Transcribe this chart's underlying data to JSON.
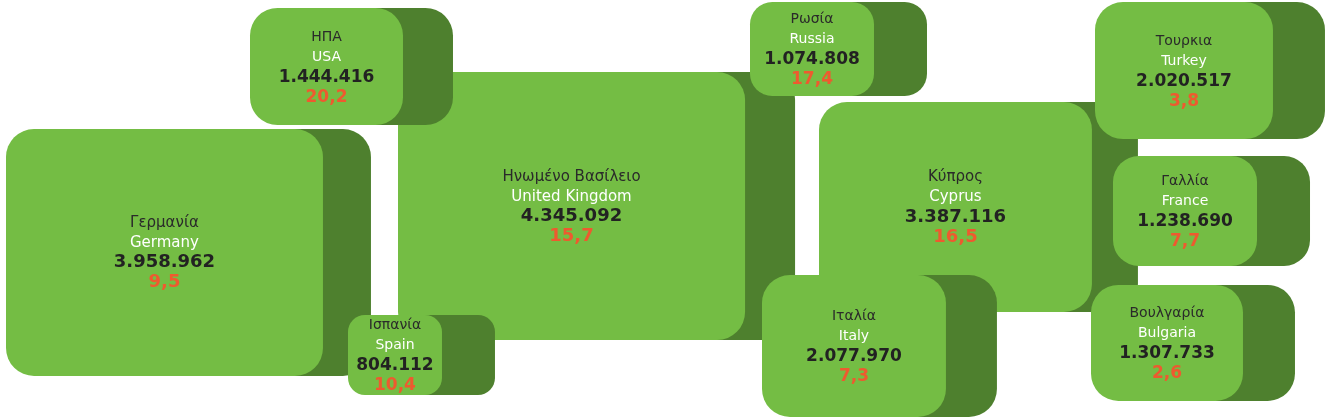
{
  "chart_data": {
    "type": "other",
    "categories": [
      "Γερμανία\nGermany",
      "Ηνωμένο Βασίλειο\nUnited Kingdom",
      "ΗΠΑ\nUSA",
      "Ισπανία\nSpain",
      "Ρωσία\nRussia",
      "Κύπρος\nCyprus",
      "Ιταλία\nItaly",
      "Τουρκια\nTurkey",
      "Γαλλία\nFrance",
      "Βουλγαρία\nBulgaria"
    ],
    "colors": [
      "#74bd44",
      "#74bd44",
      "#74bd44",
      "#74bd44",
      "#74bd44",
      "#74bd44",
      "#74bd44",
      "#74bd44",
      "#74bd44",
      "#74bd44"
    ],
    "values": [
      3958962,
      4345092,
      1444416,
      804112,
      1074808,
      3387116,
      2077970,
      2020517,
      1238690,
      1307733
    ],
    "value_labels": [
      "3.958.962",
      "4.345.092",
      "1.444.416",
      "804.112",
      "1.074.808",
      "3.387.116",
      "2.077.970",
      "2.020.517",
      "1.238.690",
      "1.307.733"
    ],
    "annotations": [
      "9,5",
      "15,7",
      "20,2",
      "10,4",
      "17,4",
      "16,5",
      "7,3",
      "3,8",
      "7,7",
      "2,6"
    ]
  }
}
